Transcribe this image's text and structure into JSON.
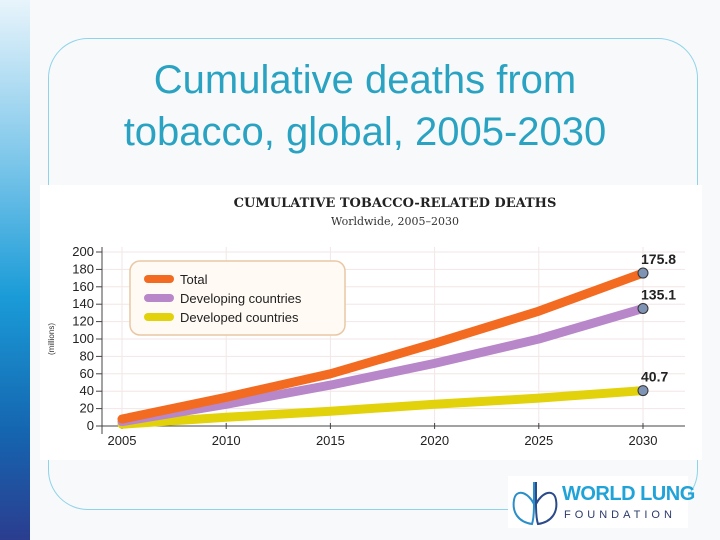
{
  "slide": {
    "title_line1": "Cumulative deaths from",
    "title_line2": "tobacco, global, 2005-2030",
    "logo_line1": "WORLD LUNG",
    "logo_line2": "FOUNDATION"
  },
  "chart_data": {
    "type": "line",
    "title": "CUMULATIVE TOBACCO-RELATED DEATHS",
    "subtitle": "Worldwide, 2005–2030",
    "xlabel": "",
    "ylabel": "(millions)",
    "x": [
      2005,
      2010,
      2015,
      2020,
      2025,
      2030
    ],
    "xticks": [
      "2005",
      "2010",
      "2015",
      "2020",
      "2025",
      "2030"
    ],
    "yticks": [
      "0",
      "20",
      "40",
      "60",
      "80",
      "100",
      "120",
      "140",
      "160",
      "180",
      "200"
    ],
    "ylim": [
      0,
      200
    ],
    "xlim": [
      2005,
      2030
    ],
    "grid": true,
    "legend_position": "top-left",
    "series": [
      {
        "name": "Total",
        "color": "#f26b21",
        "values": [
          8,
          33,
          60,
          95,
          132,
          175.8
        ],
        "end_label": "175.8"
      },
      {
        "name": "Developing countries",
        "color": "#b887c9",
        "values": [
          5,
          25,
          47,
          72,
          100,
          135.1
        ],
        "end_label": "135.1"
      },
      {
        "name": "Developed countries",
        "color": "#e2d20c",
        "values": [
          2,
          10,
          17,
          25,
          32,
          40.7
        ],
        "end_label": "40.7"
      }
    ]
  }
}
